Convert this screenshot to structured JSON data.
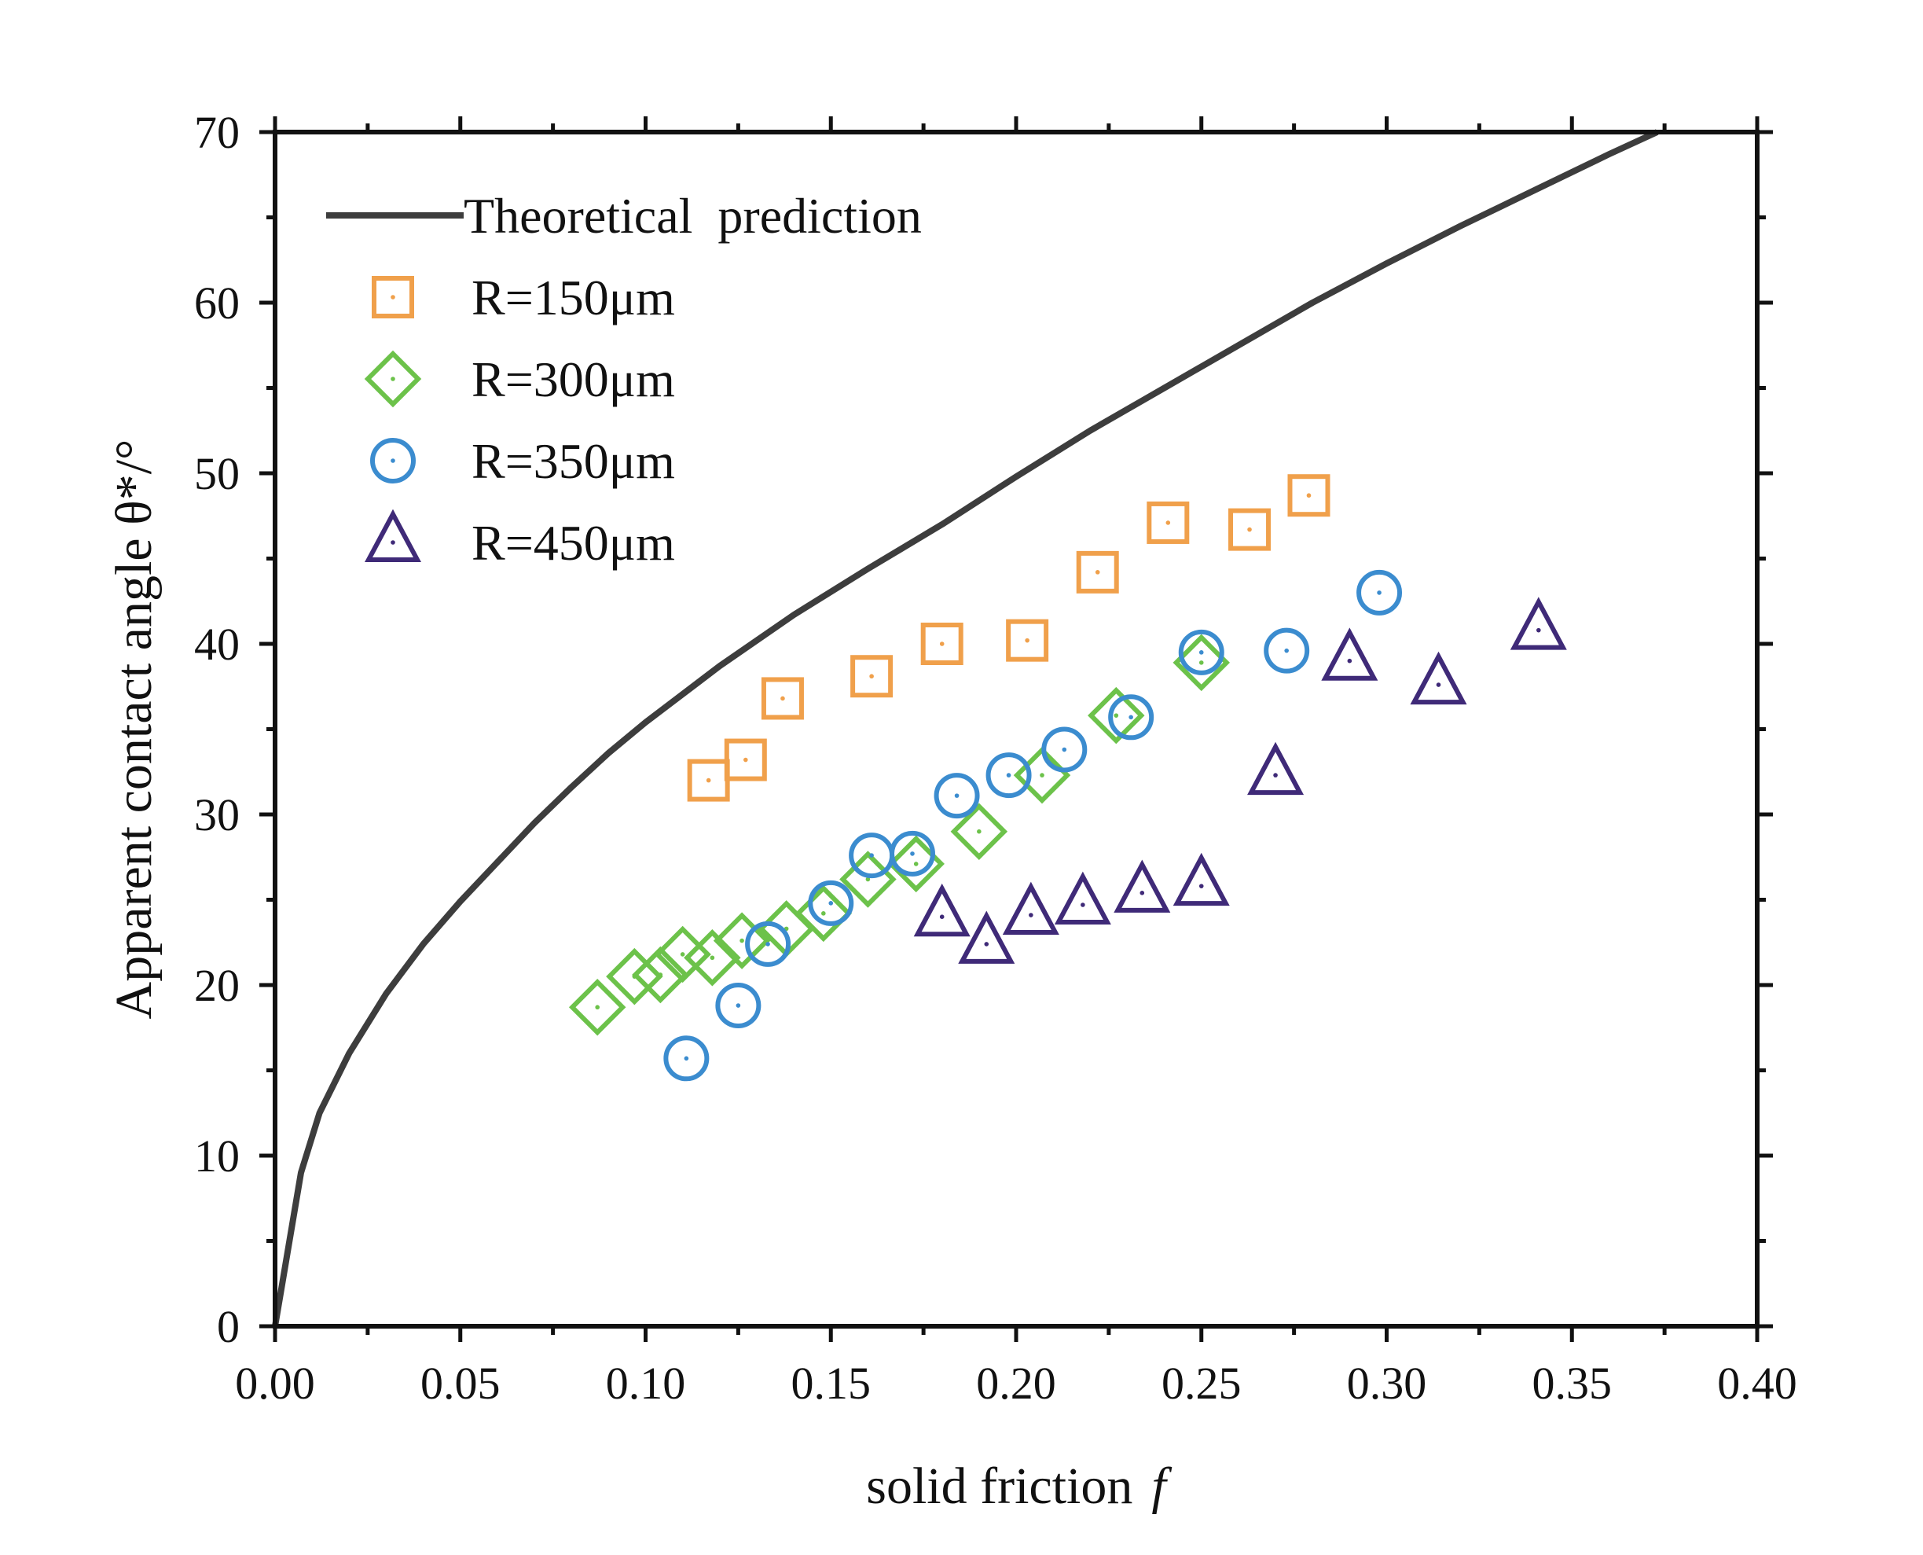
{
  "chart_data": {
    "type": "scatter",
    "title": "",
    "xlabel": "solid friction",
    "xlabel_symbol": "f",
    "ylabel": "Apparent contact angle θ*/°",
    "xlim": [
      0,
      0.4
    ],
    "ylim": [
      0,
      70
    ],
    "x_ticks": [
      0,
      0.05,
      0.1,
      0.15,
      0.2,
      0.25,
      0.3,
      0.35,
      0.4
    ],
    "x_tick_labels": [
      "0.00",
      "0.05",
      "0.10",
      "0.15",
      "0.20",
      "0.25",
      "0.30",
      "0.35",
      "0.40"
    ],
    "y_ticks": [
      0,
      10,
      20,
      30,
      40,
      50,
      60,
      70
    ],
    "y_tick_labels": [
      "0",
      "10",
      "20",
      "30",
      "40",
      "50",
      "60",
      "70"
    ],
    "grid": false,
    "legend_position": "top-left",
    "line": {
      "name": "Theoretical  prediction",
      "color": "#3d3d3d",
      "x": [
        0,
        0.007,
        0.012,
        0.02,
        0.03,
        0.04,
        0.05,
        0.06,
        0.07,
        0.08,
        0.09,
        0.1,
        0.12,
        0.14,
        0.16,
        0.18,
        0.2,
        0.22,
        0.24,
        0.26,
        0.28,
        0.3,
        0.32,
        0.34,
        0.36,
        0.373
      ],
      "y": [
        0,
        9,
        12.5,
        16,
        19.5,
        22.4,
        24.9,
        27.2,
        29.5,
        31.6,
        33.6,
        35.4,
        38.7,
        41.7,
        44.4,
        47.0,
        49.8,
        52.5,
        55.0,
        57.5,
        60.0,
        62.3,
        64.5,
        66.6,
        68.7,
        70.0
      ]
    },
    "series": [
      {
        "name": "R=150μm",
        "marker": "square",
        "color": "#f0a04b",
        "x": [
          0.117,
          0.127,
          0.137,
          0.161,
          0.18,
          0.203,
          0.222,
          0.241,
          0.263,
          0.279
        ],
        "y": [
          32.0,
          33.2,
          36.8,
          38.1,
          40.0,
          40.2,
          44.2,
          47.1,
          46.7,
          48.7
        ]
      },
      {
        "name": "R=300μm",
        "marker": "diamond",
        "color": "#6cc24a",
        "x": [
          0.087,
          0.097,
          0.104,
          0.11,
          0.118,
          0.126,
          0.138,
          0.148,
          0.16,
          0.173,
          0.19,
          0.207,
          0.227,
          0.25
        ],
        "y": [
          18.7,
          20.5,
          20.6,
          21.8,
          21.6,
          22.6,
          23.3,
          24.2,
          26.2,
          27.1,
          29.0,
          32.3,
          35.8,
          38.9
        ]
      },
      {
        "name": "R=350μm",
        "marker": "circle",
        "color": "#3b8ccf",
        "x": [
          0.111,
          0.125,
          0.133,
          0.15,
          0.161,
          0.172,
          0.184,
          0.198,
          0.213,
          0.231,
          0.25,
          0.273,
          0.298
        ],
        "y": [
          15.7,
          18.8,
          22.4,
          24.8,
          27.6,
          27.7,
          31.1,
          32.3,
          33.8,
          35.7,
          39.5,
          39.6,
          43.0
        ]
      },
      {
        "name": "R=450μm",
        "marker": "triangle",
        "color": "#3f2a78",
        "x": [
          0.18,
          0.192,
          0.204,
          0.218,
          0.234,
          0.25,
          0.27,
          0.29,
          0.314,
          0.341
        ],
        "y": [
          24.0,
          22.4,
          24.1,
          24.7,
          25.4,
          25.8,
          32.3,
          39.0,
          37.6,
          40.8
        ]
      }
    ]
  }
}
